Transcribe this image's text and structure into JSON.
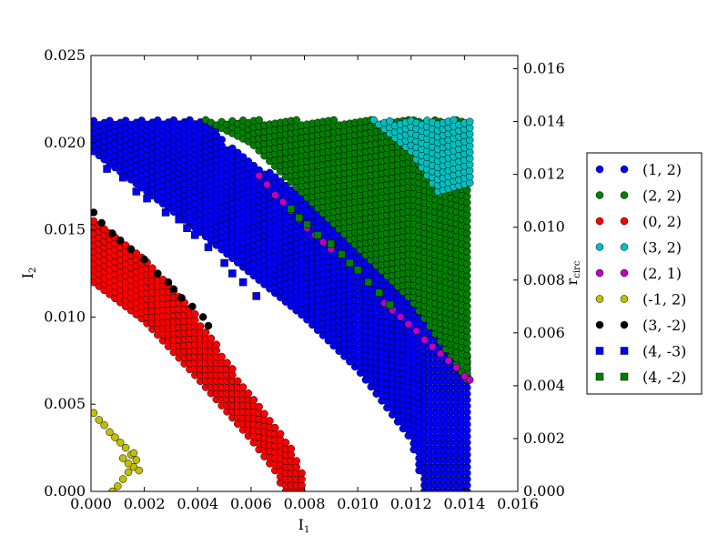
{
  "chart_data": {
    "type": "scatter",
    "xlabel": "I",
    "xlabel_sub": "1",
    "ylabel": "I",
    "ylabel_sub": "2",
    "y2label": "r",
    "y2label_sub": "circ",
    "xlim": [
      0,
      0.016
    ],
    "ylim": [
      0,
      0.025
    ],
    "y2lim": [
      0,
      0.0165
    ],
    "x_ticks": [
      "0.000",
      "0.002",
      "0.004",
      "0.006",
      "0.008",
      "0.010",
      "0.012",
      "0.014",
      "0.016"
    ],
    "y_ticks": [
      "0.000",
      "0.005",
      "0.010",
      "0.015",
      "0.020",
      "0.025"
    ],
    "y2_ticks": [
      "0.000",
      "0.002",
      "0.004",
      "0.006",
      "0.008",
      "0.010",
      "0.012",
      "0.014",
      "0.016"
    ],
    "grid": false,
    "legend_position": "outside-right",
    "series": [
      {
        "name": "(1, 2)",
        "color": "#0000ff",
        "marker": "circle",
        "region": {
          "kind": "band",
          "x_range": [
            0.0001,
            0.0142
          ],
          "lower": [
            [
              0.0001,
              0.0195
            ],
            [
              0.004,
              0.015
            ],
            [
              0.006,
              0.0125
            ],
            [
              0.008,
              0.01
            ],
            [
              0.01,
              0.007
            ],
            [
              0.012,
              0.003
            ],
            [
              0.0125,
              0.0
            ],
            [
              0.0142,
              0.0
            ]
          ],
          "upper": [
            [
              0.0001,
              0.0213
            ],
            [
              0.0045,
              0.0213
            ],
            [
              0.005,
              0.02
            ],
            [
              0.008,
              0.017
            ],
            [
              0.01,
              0.0145
            ],
            [
              0.012,
              0.012
            ],
            [
              0.0142,
              0.0075
            ]
          ]
        }
      },
      {
        "name": "(2, 2)",
        "color": "#008000",
        "marker": "circle",
        "region": {
          "kind": "band",
          "x_range": [
            0.0043,
            0.0142
          ],
          "lower": [
            [
              0.0043,
              0.0213
            ],
            [
              0.006,
              0.02
            ],
            [
              0.008,
              0.017
            ],
            [
              0.01,
              0.014
            ],
            [
              0.012,
              0.011
            ],
            [
              0.0142,
              0.0062
            ]
          ],
          "upper": [
            [
              0.0043,
              0.0213
            ],
            [
              0.0142,
              0.0213
            ]
          ]
        }
      },
      {
        "name": "(0, 2)",
        "color": "#ff0000",
        "marker": "circle",
        "region": {
          "kind": "band",
          "x_range": [
            0.0001,
            0.008
          ],
          "lower": [
            [
              0.0001,
              0.012
            ],
            [
              0.002,
              0.0098
            ],
            [
              0.004,
              0.0065
            ],
            [
              0.006,
              0.003
            ],
            [
              0.007,
              0.001
            ],
            [
              0.0072,
              0.0
            ],
            [
              0.008,
              0.0
            ]
          ],
          "upper": [
            [
              0.0001,
              0.0158
            ],
            [
              0.002,
              0.0135
            ],
            [
              0.004,
              0.01
            ],
            [
              0.006,
              0.0055
            ],
            [
              0.0075,
              0.0025
            ],
            [
              0.008,
              0.001
            ]
          ]
        }
      },
      {
        "name": "(3, 2)",
        "color": "#00bfbf",
        "marker": "circle",
        "region": {
          "kind": "band",
          "x_range": [
            0.0106,
            0.0142
          ],
          "lower": [
            [
              0.0106,
              0.0213
            ],
            [
              0.012,
              0.0195
            ],
            [
              0.013,
              0.0172
            ],
            [
              0.0142,
              0.0177
            ]
          ],
          "upper": [
            [
              0.0106,
              0.0213
            ],
            [
              0.0142,
              0.0213
            ]
          ]
        }
      },
      {
        "name": "(2, 1)",
        "color": "#bf00bf",
        "marker": "circle",
        "points": [
          [
            0.0063,
            0.0181
          ],
          [
            0.0066,
            0.0176
          ],
          [
            0.0069,
            0.017
          ],
          [
            0.0072,
            0.0166
          ],
          [
            0.0075,
            0.0161
          ],
          [
            0.0078,
            0.0156
          ],
          [
            0.0081,
            0.0151
          ],
          [
            0.0084,
            0.0147
          ],
          [
            0.0087,
            0.0143
          ],
          [
            0.009,
            0.0139
          ],
          [
            0.011,
            0.0108
          ],
          [
            0.0113,
            0.0104
          ],
          [
            0.0116,
            0.01
          ],
          [
            0.0119,
            0.0096
          ],
          [
            0.0122,
            0.0092
          ],
          [
            0.0125,
            0.0087
          ],
          [
            0.0128,
            0.0083
          ],
          [
            0.0131,
            0.0079
          ],
          [
            0.0134,
            0.0075
          ],
          [
            0.0137,
            0.0071
          ],
          [
            0.014,
            0.0066
          ],
          [
            0.0142,
            0.0064
          ]
        ]
      },
      {
        "name": "(-1, 2)",
        "color": "#bfbf00",
        "marker": "circle",
        "points": [
          [
            0.0001,
            0.0045
          ],
          [
            0.0003,
            0.0041
          ],
          [
            0.0005,
            0.0038
          ],
          [
            0.0007,
            0.0034
          ],
          [
            0.0009,
            0.0031
          ],
          [
            0.0011,
            0.0028
          ],
          [
            0.0013,
            0.0025
          ],
          [
            0.0015,
            0.0021
          ],
          [
            0.0017,
            0.0018
          ],
          [
            0.0016,
            0.0014
          ],
          [
            0.0014,
            0.0011
          ],
          [
            0.0012,
            0.0007
          ],
          [
            0.001,
            0.0003
          ],
          [
            0.0008,
            0.0
          ],
          [
            0.0012,
            0.0019
          ],
          [
            0.0014,
            0.0016
          ],
          [
            0.0016,
            0.0022
          ],
          [
            0.0018,
            0.0012
          ]
        ]
      },
      {
        "name": "(3, -2)",
        "color": "#000000",
        "marker": "circle",
        "points": [
          [
            0.0001,
            0.016
          ],
          [
            0.0004,
            0.0154
          ],
          [
            0.0008,
            0.0148
          ],
          [
            0.0011,
            0.0144
          ],
          [
            0.0015,
            0.0139
          ],
          [
            0.002,
            0.0133
          ],
          [
            0.0025,
            0.0125
          ],
          [
            0.0029,
            0.012
          ],
          [
            0.0031,
            0.0116
          ],
          [
            0.0034,
            0.0111
          ],
          [
            0.0038,
            0.0106
          ],
          [
            0.0042,
            0.01
          ],
          [
            0.0044,
            0.0095
          ]
        ]
      },
      {
        "name": "(4, -3)",
        "color": "#0000ff",
        "marker": "square",
        "points": [
          [
            0.0006,
            0.0185
          ],
          [
            0.0012,
            0.018
          ],
          [
            0.0017,
            0.0172
          ],
          [
            0.0021,
            0.0168
          ],
          [
            0.0028,
            0.016
          ],
          [
            0.0033,
            0.0156
          ],
          [
            0.0036,
            0.0151
          ],
          [
            0.0039,
            0.0147
          ],
          [
            0.0044,
            0.014
          ],
          [
            0.005,
            0.0131
          ],
          [
            0.0053,
            0.0125
          ],
          [
            0.0057,
            0.012
          ],
          [
            0.0062,
            0.0112
          ]
        ]
      },
      {
        "name": "(4, -2)",
        "color": "#008000",
        "marker": "square",
        "points": [
          [
            0.0075,
            0.0162
          ],
          [
            0.0078,
            0.0157
          ],
          [
            0.0081,
            0.0153
          ],
          [
            0.0085,
            0.0147
          ],
          [
            0.009,
            0.0142
          ],
          [
            0.0094,
            0.0136
          ],
          [
            0.0097,
            0.0131
          ],
          [
            0.01,
            0.0127
          ],
          [
            0.0104,
            0.012
          ],
          [
            0.0108,
            0.0114
          ],
          [
            0.0112,
            0.0107
          ]
        ]
      }
    ]
  }
}
